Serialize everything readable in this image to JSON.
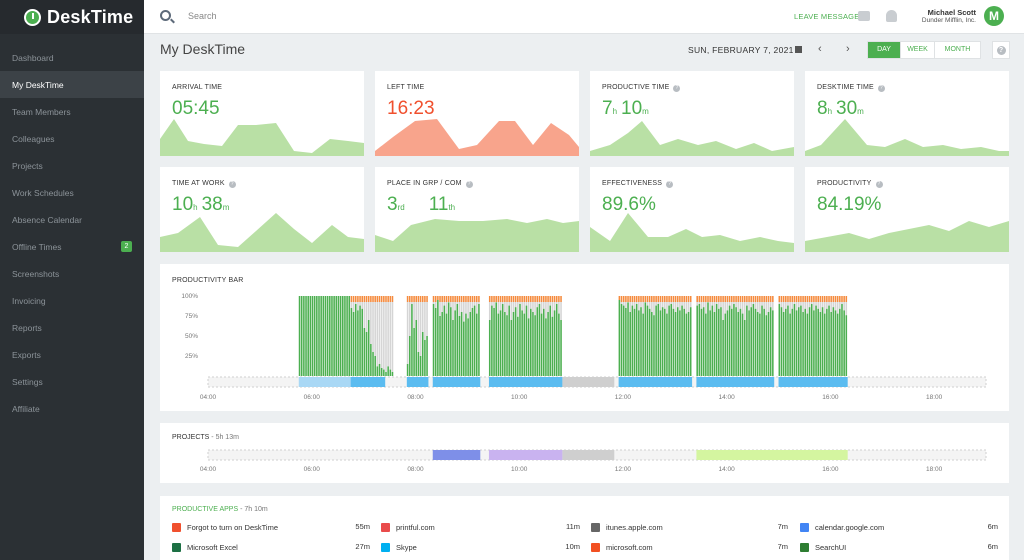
{
  "app": {
    "logo_text": "DeskTime"
  },
  "sidebar": {
    "items": [
      {
        "label": "Dashboard"
      },
      {
        "label": "My DeskTime",
        "active": true
      },
      {
        "label": "Team Members"
      },
      {
        "label": "Colleagues"
      },
      {
        "label": "Projects"
      },
      {
        "label": "Work Schedules"
      },
      {
        "label": "Absence Calendar"
      },
      {
        "label": "Offline Times",
        "badge": "2"
      },
      {
        "label": "Screenshots"
      },
      {
        "label": "Invoicing"
      },
      {
        "label": "Reports"
      },
      {
        "label": "Exports"
      },
      {
        "label": "Settings"
      },
      {
        "label": "Affiliate"
      }
    ]
  },
  "topbar": {
    "search_placeholder": "Search",
    "leave_message": "LEAVE MESSAGE",
    "user_name": "Michael Scott",
    "user_company": "Dunder Mifflin, Inc.",
    "avatar_letter": "M"
  },
  "header": {
    "title": "My DeskTime",
    "date": "SUN, FEBRUARY 7, 2021",
    "prev": "‹",
    "next": "›",
    "periods": [
      "DAY",
      "WEEK",
      "MONTH"
    ],
    "active_period": "DAY",
    "help": "?"
  },
  "colors": {
    "green": "#4caf50",
    "green_fill": "#b9e0a5",
    "red": "#f0502e",
    "red_fill": "#f8a48c",
    "orange": "#f58b3e",
    "blue": "#5bbcf0",
    "gray_bar": "#d5d5d5"
  },
  "stats": [
    {
      "label": "ARRIVAL TIME",
      "value": "05:45",
      "info": false,
      "color": "green"
    },
    {
      "label": "LEFT TIME",
      "value": "16:23",
      "info": false,
      "color": "red"
    },
    {
      "label": "PRODUCTIVE TIME",
      "v1": "7",
      "u1": "h",
      "v2": "10",
      "u2": "m",
      "info": true,
      "color": "green"
    },
    {
      "label": "DESKTIME TIME",
      "v1": "8",
      "u1": "h",
      "v2": "30",
      "u2": "m",
      "info": true,
      "color": "green"
    },
    {
      "label": "TIME AT WORK",
      "v1": "10",
      "u1": "h",
      "v2": "38",
      "u2": "m",
      "info": true,
      "color": "green"
    },
    {
      "label": "PLACE IN GRP / COM",
      "v1": "3",
      "u1": "rd",
      "v2": "11",
      "u2": "th",
      "info": true,
      "color": "green"
    },
    {
      "label": "EFFECTIVENESS",
      "value": "89.6%",
      "info": true,
      "color": "green"
    },
    {
      "label": "PRODUCTIVITY",
      "value": "84.19%",
      "info": true,
      "color": "green"
    }
  ],
  "productivity_bar": {
    "title": "PRODUCTIVITY BAR",
    "y_ticks": [
      "100%",
      "75%",
      "50%",
      "25%"
    ],
    "x_ticks": [
      "04:00",
      "06:00",
      "08:00",
      "10:00",
      "12:00",
      "14:00",
      "16:00",
      "18:00"
    ]
  },
  "projects": {
    "title": "PROJECTS",
    "duration": "5h 13m",
    "x_ticks": [
      "04:00",
      "06:00",
      "08:00",
      "10:00",
      "12:00",
      "14:00",
      "16:00",
      "18:00"
    ]
  },
  "apps": {
    "title": "PRODUCTIVE APPS",
    "duration": "7h 10m",
    "rows": [
      [
        {
          "name": "Forgot to turn on DeskTime",
          "time": "55m",
          "icon": "desktime-icon",
          "color": "#f0502e"
        },
        {
          "name": "printful.com",
          "time": "11m",
          "icon": "printful-icon",
          "color": "#e94b4b"
        },
        {
          "name": "itunes.apple.com",
          "time": "7m",
          "icon": "apple-icon",
          "color": "#666666"
        },
        {
          "name": "calendar.google.com",
          "time": "6m",
          "icon": "google-icon",
          "color": "#4285f4"
        }
      ],
      [
        {
          "name": "Microsoft Excel",
          "time": "27m",
          "icon": "excel-icon",
          "color": "#1d7044"
        },
        {
          "name": "Skype",
          "time": "10m",
          "icon": "skype-icon",
          "color": "#00aff0"
        },
        {
          "name": "microsoft.com",
          "time": "7m",
          "icon": "microsoft-icon",
          "color": "#f25022"
        },
        {
          "name": "SearchUI",
          "time": "6m",
          "icon": "searchui-icon",
          "color": "#2e7d32"
        }
      ]
    ]
  },
  "chart_data": [
    {
      "type": "bar",
      "title": "PRODUCTIVITY BAR",
      "x_range": [
        "04:00",
        "19:00"
      ],
      "ylim": [
        0,
        100
      ],
      "y_ticks": [
        "100%",
        "75%",
        "50%",
        "25%"
      ],
      "x_ticks": [
        "04:00",
        "06:00",
        "08:00",
        "10:00",
        "12:00",
        "14:00",
        "16:00",
        "18:00"
      ],
      "series": [
        {
          "name": "productive",
          "color": "#4caf50"
        },
        {
          "name": "neutral",
          "color": "#d5d5d5"
        },
        {
          "name": "unproductive",
          "color": "#f58b3e"
        }
      ],
      "activity_blocks": [
        {
          "start": "05:45",
          "end": "06:45",
          "values": [
            100,
            100,
            100,
            100,
            100,
            100,
            100,
            100,
            100,
            100,
            100,
            100,
            100,
            100,
            100,
            100,
            100,
            100,
            100,
            100,
            100,
            100,
            100,
            100
          ]
        },
        {
          "start": "06:45",
          "end": "07:35",
          "values": [
            85,
            80,
            90,
            82,
            88,
            84,
            60,
            55,
            70,
            40,
            30,
            25,
            12,
            15,
            10,
            8,
            5,
            12,
            8,
            5
          ]
        },
        {
          "start": "07:50",
          "end": "08:15",
          "values": [
            15,
            50,
            90,
            60,
            70,
            30,
            25,
            55,
            45,
            50
          ]
        },
        {
          "start": "08:20",
          "end": "09:15",
          "values": [
            90,
            85,
            95,
            75,
            80,
            88,
            78,
            92,
            86,
            70,
            82,
            90,
            75,
            80,
            68,
            78,
            72,
            80,
            85,
            88,
            78,
            90
          ]
        },
        {
          "start": "09:25",
          "end": "10:50",
          "values": [
            70,
            88,
            85,
            92,
            78,
            82,
            90,
            80,
            76,
            88,
            70,
            80,
            86,
            74,
            90,
            82,
            78,
            88,
            72,
            84,
            80,
            76,
            86,
            90,
            78,
            84,
            72,
            80,
            88,
            74,
            82,
            90,
            78,
            70
          ]
        },
        {
          "start": "11:55",
          "end": "13:20",
          "values": [
            95,
            90,
            88,
            85,
            92,
            80,
            88,
            84,
            90,
            82,
            86,
            78,
            92,
            88,
            84,
            80,
            76,
            88,
            90,
            82,
            86,
            84,
            78,
            88,
            90,
            84,
            80,
            86,
            82,
            88,
            84,
            78,
            80,
            86
          ]
        },
        {
          "start": "13:25",
          "end": "14:55",
          "values": [
            88,
            90,
            84,
            86,
            78,
            92,
            82,
            88,
            80,
            90,
            84,
            86,
            70,
            78,
            82,
            88,
            84,
            90,
            86,
            80,
            84,
            78,
            70,
            88,
            82,
            86,
            90,
            84,
            80,
            78,
            88,
            84,
            76,
            80,
            86,
            82
          ]
        },
        {
          "start": "15:00",
          "end": "16:20",
          "values": [
            90,
            86,
            80,
            84,
            88,
            78,
            84,
            90,
            82,
            86,
            88,
            80,
            84,
            78,
            86,
            90,
            82,
            88,
            84,
            80,
            86,
            78,
            84,
            88,
            80,
            86,
            82,
            78,
            84,
            90,
            82,
            76
          ]
        }
      ],
      "timeline_segments": [
        {
          "start": "05:45",
          "end": "06:45",
          "type": "light-blue"
        },
        {
          "start": "06:45",
          "end": "07:25",
          "type": "blue"
        },
        {
          "start": "07:50",
          "end": "08:15",
          "type": "blue"
        },
        {
          "start": "08:20",
          "end": "09:15",
          "type": "blue"
        },
        {
          "start": "09:25",
          "end": "10:50",
          "type": "blue"
        },
        {
          "start": "10:50",
          "end": "11:50",
          "type": "gray"
        },
        {
          "start": "11:55",
          "end": "13:20",
          "type": "blue"
        },
        {
          "start": "13:25",
          "end": "14:55",
          "type": "blue"
        },
        {
          "start": "15:00",
          "end": "16:20",
          "type": "blue"
        }
      ]
    },
    {
      "type": "timeline",
      "title": "PROJECTS",
      "x_range": [
        "04:00",
        "19:00"
      ],
      "x_ticks": [
        "04:00",
        "06:00",
        "08:00",
        "10:00",
        "12:00",
        "14:00",
        "16:00",
        "18:00"
      ],
      "segments": [
        {
          "start": "08:20",
          "end": "09:15",
          "color": "#7e8fe8"
        },
        {
          "start": "09:25",
          "end": "10:50",
          "color": "#c9b3f0"
        },
        {
          "start": "10:50",
          "end": "11:50",
          "color": "#cfcfcf"
        },
        {
          "start": "13:25",
          "end": "16:20",
          "color": "#d4f5a0"
        }
      ]
    }
  ]
}
